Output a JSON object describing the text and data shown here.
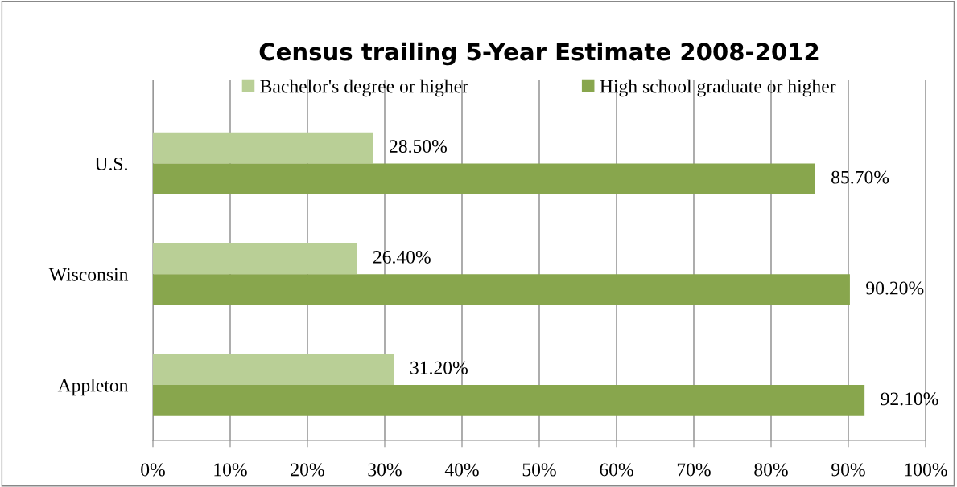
{
  "chart_data": {
    "type": "bar",
    "orientation": "horizontal",
    "title": "Census trailing 5-Year Estimate 2008-2012",
    "categories": [
      "U.S.",
      "Wisconsin",
      "Appleton"
    ],
    "series": [
      {
        "name": "Bachelor's degree or higher",
        "color": "#b9cf96",
        "values": [
          28.5,
          26.4,
          31.2
        ],
        "value_labels": [
          "28.50%",
          "26.40%",
          "31.20%"
        ]
      },
      {
        "name": "High school graduate or higher",
        "color": "#88a64d",
        "values": [
          85.7,
          90.2,
          92.1
        ],
        "value_labels": [
          "85.70%",
          "90.20%",
          "92.10%"
        ]
      }
    ],
    "xlim": [
      0,
      100
    ],
    "xticks": [
      {
        "value": 0,
        "label": "0%"
      },
      {
        "value": 10,
        "label": "10%"
      },
      {
        "value": 20,
        "label": "20%"
      },
      {
        "value": 30,
        "label": "30%"
      },
      {
        "value": 40,
        "label": "40%"
      },
      {
        "value": 50,
        "label": "50%"
      },
      {
        "value": 60,
        "label": "60%"
      },
      {
        "value": 70,
        "label": "70%"
      },
      {
        "value": 80,
        "label": "80%"
      },
      {
        "value": 90,
        "label": "90%"
      },
      {
        "value": 100,
        "label": "100%"
      }
    ],
    "grid": "x",
    "legend": "top"
  }
}
